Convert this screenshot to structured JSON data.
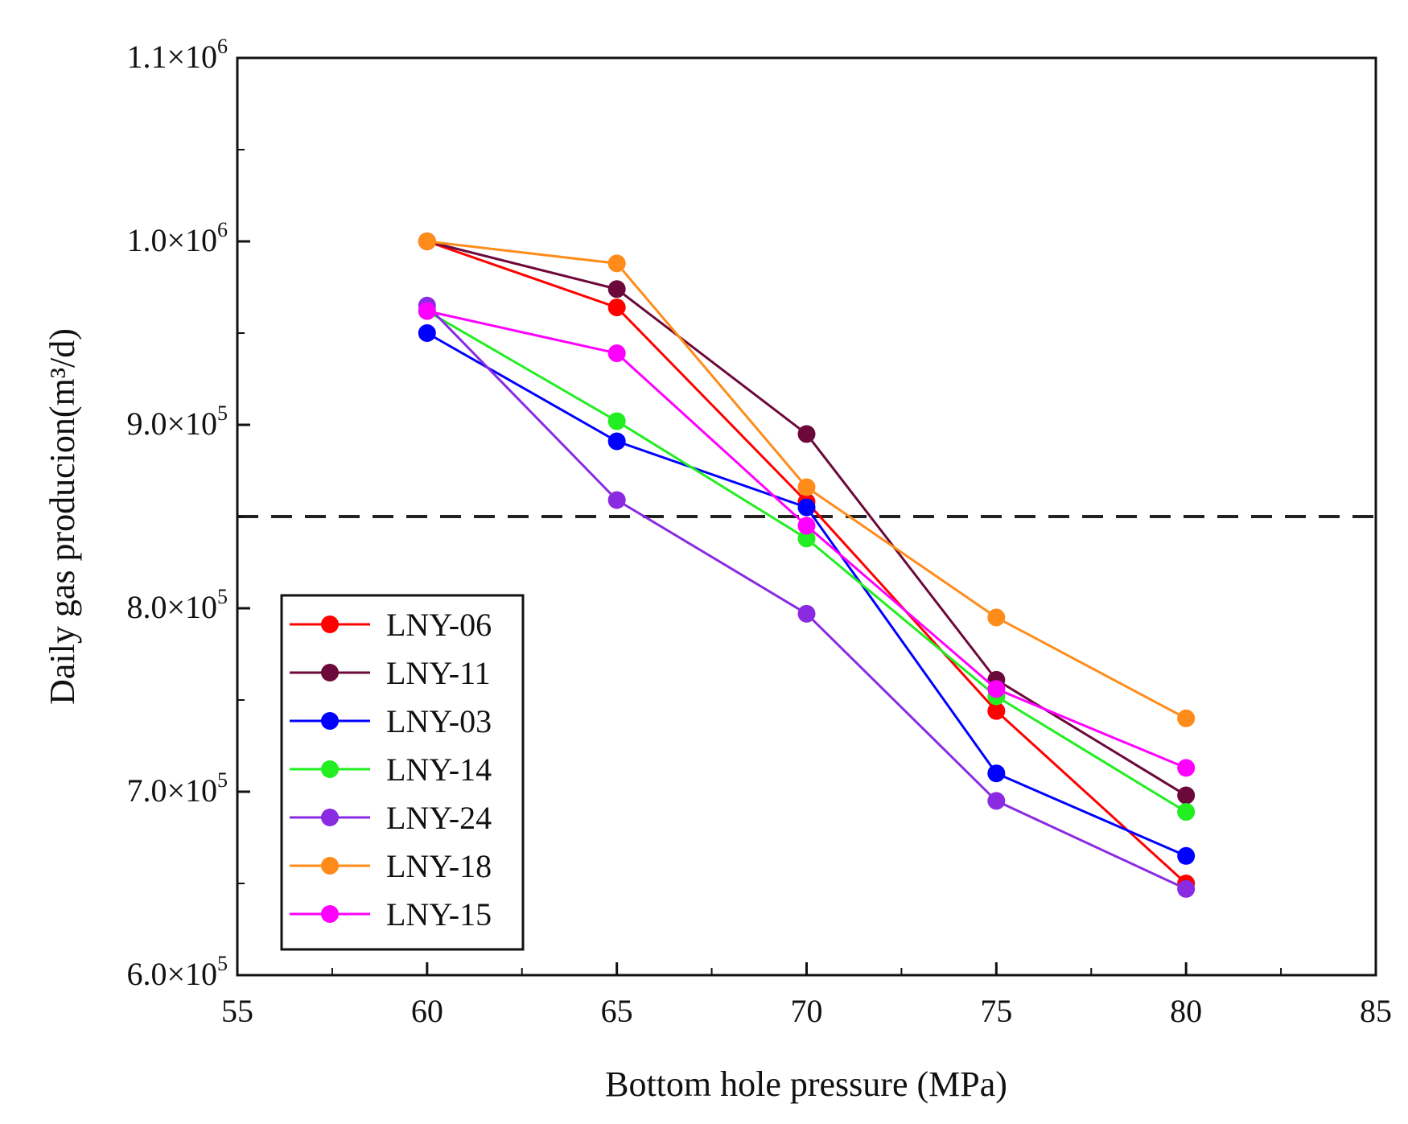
{
  "chart_data": {
    "type": "line",
    "title": "",
    "xlabel": "Bottom hole pressure (MPa)",
    "ylabel": "Daily gas producion(m³/d)",
    "xlim": [
      55,
      85
    ],
    "ylim": [
      600000,
      1100000
    ],
    "x_ticks": [
      55,
      60,
      65,
      70,
      75,
      80,
      85
    ],
    "y_ticks": [
      {
        "value": 600000,
        "mantissa": "6.0×10",
        "exp": "5"
      },
      {
        "value": 700000,
        "mantissa": "7.0×10",
        "exp": "5"
      },
      {
        "value": 800000,
        "mantissa": "8.0×10",
        "exp": "5"
      },
      {
        "value": 900000,
        "mantissa": "9.0×10",
        "exp": "5"
      },
      {
        "value": 1000000,
        "mantissa": "1.0×10",
        "exp": "6"
      },
      {
        "value": 1100000,
        "mantissa": "1.1×10",
        "exp": "6"
      }
    ],
    "grid": false,
    "legend_position": "bottom-left",
    "reference_line": {
      "y": 850000,
      "style": "dashed",
      "color": "#222222"
    },
    "x": [
      60,
      65,
      70,
      75,
      80
    ],
    "series": [
      {
        "name": "LNY-06",
        "color": "#ff0000",
        "values": [
          1000000,
          964000,
          858000,
          744000,
          650000
        ]
      },
      {
        "name": "LNY-11",
        "color": "#6b0a3a",
        "values": [
          1000000,
          974000,
          895000,
          761000,
          698000
        ]
      },
      {
        "name": "LNY-03",
        "color": "#0000ff",
        "values": [
          950000,
          891000,
          855000,
          710000,
          665000
        ]
      },
      {
        "name": "LNY-14",
        "color": "#22ee22",
        "values": [
          962000,
          902000,
          838000,
          752000,
          689000
        ]
      },
      {
        "name": "LNY-24",
        "color": "#8a2be2",
        "values": [
          965000,
          859000,
          797000,
          695000,
          647000
        ]
      },
      {
        "name": "LNY-18",
        "color": "#ff8c1a",
        "values": [
          1000000,
          988000,
          866000,
          795000,
          740000
        ]
      },
      {
        "name": "LNY-15",
        "color": "#ff00ff",
        "values": [
          962000,
          939000,
          845000,
          756000,
          713000
        ]
      }
    ]
  }
}
